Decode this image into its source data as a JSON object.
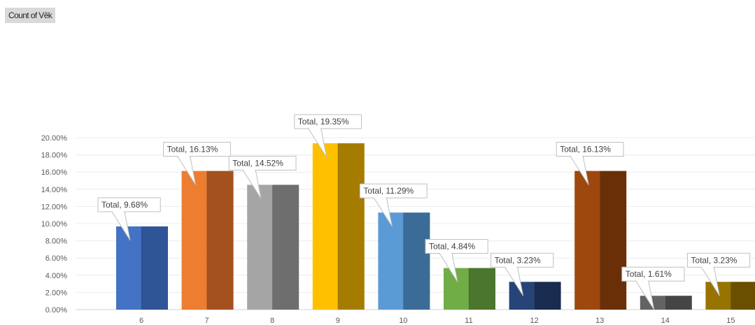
{
  "field_button": {
    "label": "Count of Věk"
  },
  "chart_data": {
    "type": "bar",
    "style": "3d-clustered-column",
    "categories": [
      "6",
      "7",
      "8",
      "9",
      "10",
      "11",
      "12",
      "13",
      "14",
      "15"
    ],
    "series": [
      {
        "values": [
          9.68,
          16.13,
          14.52,
          19.35,
          11.29,
          4.84,
          3.23,
          16.13,
          1.61,
          3.23
        ]
      }
    ],
    "data_labels": [
      "Total, 9.68%",
      "Total, 16.13%",
      "Total, 14.52%",
      "Total, 19.35%",
      "Total, 11.29%",
      "Total, 4.84%",
      "Total, 3.23%",
      "Total, 16.13%",
      "Total, 1.61%",
      "Total, 3.23%"
    ],
    "y_ticks": [
      "0.00%",
      "2.00%",
      "4.00%",
      "6.00%",
      "8.00%",
      "10.00%",
      "12.00%",
      "14.00%",
      "16.00%",
      "18.00%",
      "20.00%"
    ],
    "ylim": [
      0,
      20
    ],
    "grid": true,
    "legend": "none",
    "colors": [
      {
        "front": "#4472c4",
        "side": "#2f5597"
      },
      {
        "front": "#ed7d31",
        "side": "#a5501f"
      },
      {
        "front": "#a5a5a5",
        "side": "#6e6e6e"
      },
      {
        "front": "#ffc000",
        "side": "#a67c00"
      },
      {
        "front": "#5b9bd5",
        "side": "#3b6c97"
      },
      {
        "front": "#70ad47",
        "side": "#4a762d"
      },
      {
        "front": "#264478",
        "side": "#182c50"
      },
      {
        "front": "#9e480e",
        "side": "#6b2f07"
      },
      {
        "front": "#636363",
        "side": "#454545"
      },
      {
        "front": "#997300",
        "side": "#6a4f00"
      }
    ]
  }
}
